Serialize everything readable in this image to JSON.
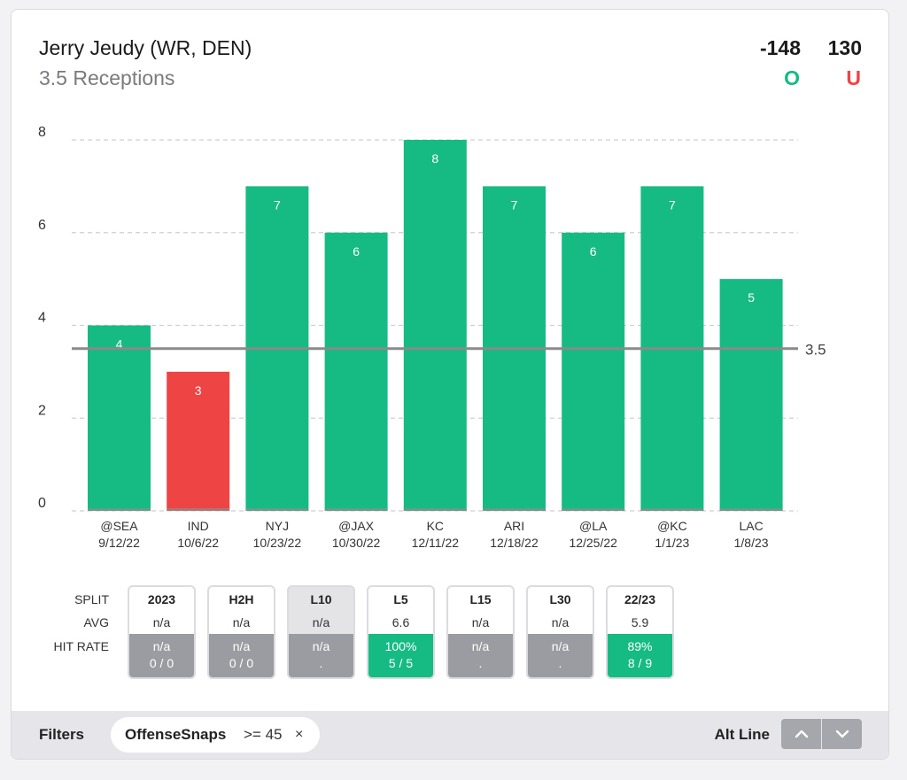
{
  "header": {
    "player": "Jerry Jeudy (WR, DEN)",
    "market": "3.5 Receptions",
    "over_odds": "-148",
    "under_odds": "130",
    "over_label": "O",
    "under_label": "U"
  },
  "colors": {
    "over": "#15bb82",
    "under": "#ef4444",
    "line": "#8a8a8a",
    "grid": "#cfcfcf"
  },
  "chart_data": {
    "type": "bar",
    "categories": [
      "@SEA",
      "IND",
      "NYJ",
      "@JAX",
      "KC",
      "ARI",
      "@LA",
      "@KC",
      "LAC"
    ],
    "dates": [
      "9/12/22",
      "10/6/22",
      "10/23/22",
      "10/30/22",
      "12/11/22",
      "12/18/22",
      "12/25/22",
      "1/1/23",
      "1/8/23"
    ],
    "values": [
      4,
      3,
      7,
      6,
      8,
      7,
      6,
      7,
      5
    ],
    "line": 3.5,
    "line_label": "3.5",
    "ylim": [
      0,
      8
    ],
    "yticks": [
      0,
      2,
      4,
      6,
      8
    ],
    "grid": true,
    "title": "",
    "xlabel": "",
    "ylabel": ""
  },
  "splits": {
    "row_labels": {
      "split": "SPLIT",
      "avg": "AVG",
      "hit": "HIT RATE"
    },
    "items": [
      {
        "label": "2023",
        "avg": "n/a",
        "hit": "n/a",
        "record": "0 / 0",
        "good": false,
        "active": false
      },
      {
        "label": "H2H",
        "avg": "n/a",
        "hit": "n/a",
        "record": "0 / 0",
        "good": false,
        "active": false
      },
      {
        "label": "L10",
        "avg": "n/a",
        "hit": "n/a",
        "record": ".",
        "good": false,
        "active": true
      },
      {
        "label": "L5",
        "avg": "6.6",
        "hit": "100%",
        "record": "5 / 5",
        "good": true,
        "active": false
      },
      {
        "label": "L15",
        "avg": "n/a",
        "hit": "n/a",
        "record": ".",
        "good": false,
        "active": false
      },
      {
        "label": "L30",
        "avg": "n/a",
        "hit": "n/a",
        "record": ".",
        "good": false,
        "active": false
      },
      {
        "label": "22/23",
        "avg": "5.9",
        "hit": "89%",
        "record": "8 / 9",
        "good": true,
        "active": false
      }
    ]
  },
  "footer": {
    "filters_label": "Filters",
    "filter_name": "OffenseSnaps",
    "filter_condition": ">= 45",
    "filter_remove": "×",
    "alt_line_label": "Alt Line",
    "up_icon": "chevron-up-icon",
    "down_icon": "chevron-down-icon"
  }
}
